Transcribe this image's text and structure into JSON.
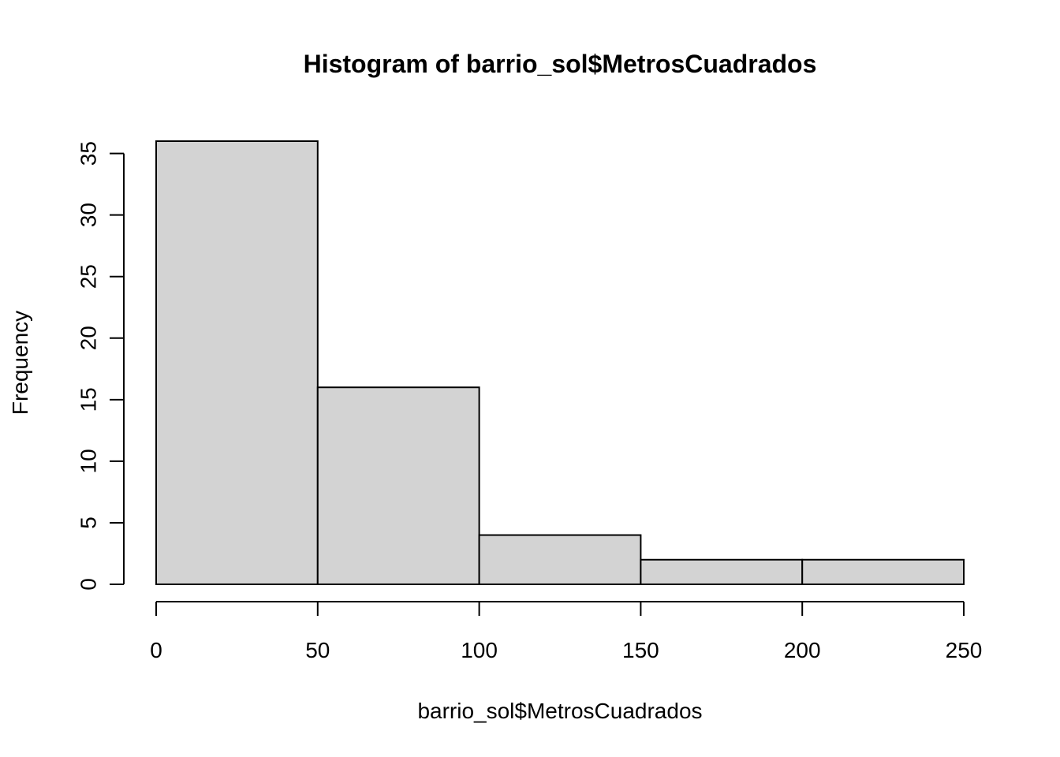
{
  "chart_data": {
    "type": "bar",
    "title": "Histogram of barrio_sol$MetrosCuadrados",
    "xlabel": "barrio_sol$MetrosCuadrados",
    "ylabel": "Frequency",
    "bins": [
      {
        "start": 0,
        "end": 50,
        "value": 36
      },
      {
        "start": 50,
        "end": 100,
        "value": 16
      },
      {
        "start": 100,
        "end": 150,
        "value": 4
      },
      {
        "start": 150,
        "end": 200,
        "value": 2
      },
      {
        "start": 200,
        "end": 250,
        "value": 2
      }
    ],
    "xlim": [
      0,
      250
    ],
    "ylim": [
      0,
      36
    ],
    "x_ticks": [
      0,
      50,
      100,
      150,
      200,
      250
    ],
    "x_tick_labels": [
      "0",
      "50",
      "100",
      "150",
      "200",
      "250"
    ],
    "y_ticks": [
      0,
      5,
      10,
      15,
      20,
      25,
      30,
      35
    ],
    "y_tick_labels": [
      "0",
      "5",
      "10",
      "15",
      "20",
      "25",
      "30",
      "35"
    ],
    "bar_fill": "#d3d3d3",
    "bar_stroke": "#000000",
    "grid": false,
    "legend": "none"
  }
}
